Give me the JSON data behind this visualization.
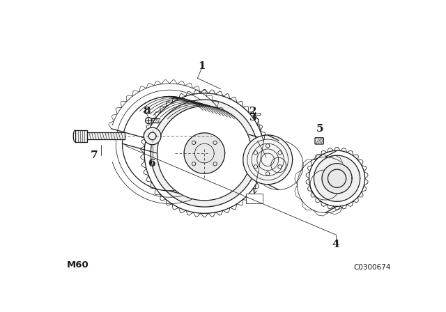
{
  "background_color": "#ffffff",
  "line_color": "#1a1a1a",
  "fig_width": 6.4,
  "fig_height": 4.48,
  "dpi": 100,
  "bottom_left_text": "M60",
  "bottom_right_text": "C0300674"
}
